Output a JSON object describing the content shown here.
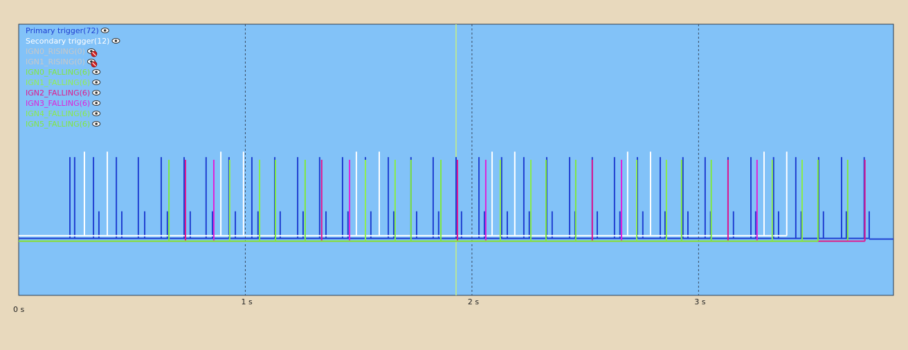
{
  "chart_data": {
    "type": "pulse",
    "xlim": [
      0,
      3.86
    ],
    "ylim": [
      0,
      1
    ],
    "xticks": [
      {
        "value": 0,
        "label": "0 s"
      },
      {
        "value": 1,
        "label": "1 s"
      },
      {
        "value": 2,
        "label": "2 s"
      },
      {
        "value": 3,
        "label": "3 s"
      }
    ],
    "grid": true,
    "cursor": 1.93,
    "cursor_color": "#c8f080",
    "series": [
      {
        "name": "Primary trigger(72)",
        "color": "#1f3fd0",
        "visible": true,
        "base": 0.21,
        "x": [
          0.226,
          0.247,
          0.33,
          0.354,
          0.431,
          0.455,
          0.528,
          0.556,
          0.629,
          0.656,
          0.73,
          0.757,
          0.827,
          0.855,
          0.928,
          0.956,
          1.029,
          1.056,
          1.13,
          1.154,
          1.231,
          1.255,
          1.328,
          1.356,
          1.429,
          1.453,
          1.53,
          1.554,
          1.631,
          1.655,
          1.731,
          1.756,
          1.829,
          1.853,
          1.93,
          1.954,
          2.031,
          2.055,
          2.131,
          2.156,
          2.229,
          2.253,
          2.33,
          2.354,
          2.431,
          2.455,
          2.531,
          2.553,
          2.629,
          2.653,
          2.73,
          2.754,
          2.831,
          2.852,
          2.931,
          2.953,
          3.029,
          3.053,
          3.13,
          3.154,
          3.231,
          3.252,
          3.331,
          3.353,
          3.429,
          3.453,
          3.53,
          3.551,
          3.631,
          3.652,
          3.731,
          3.753
        ],
        "values": [
          0.51,
          0.51,
          0.51,
          0.31,
          0.51,
          0.31,
          0.51,
          0.31,
          0.51,
          0.31,
          0.51,
          0.31,
          0.51,
          0.31,
          0.51,
          0.31,
          0.51,
          0.31,
          0.51,
          0.31,
          0.51,
          0.31,
          0.51,
          0.31,
          0.51,
          0.31,
          0.51,
          0.31,
          0.51,
          0.31,
          0.51,
          0.31,
          0.51,
          0.31,
          0.51,
          0.31,
          0.51,
          0.31,
          0.51,
          0.31,
          0.51,
          0.31,
          0.51,
          0.31,
          0.51,
          0.31,
          0.51,
          0.31,
          0.51,
          0.31,
          0.51,
          0.31,
          0.51,
          0.31,
          0.51,
          0.31,
          0.51,
          0.31,
          0.51,
          0.31,
          0.51,
          0.31,
          0.51,
          0.31,
          0.51,
          0.31,
          0.51,
          0.31,
          0.51,
          0.31,
          0.51,
          0.31
        ]
      },
      {
        "name": "Secondary trigger(12)",
        "color": "#ffffff",
        "visible": true,
        "base": 0.22,
        "x": [
          0.29,
          0.391,
          0.892,
          0.992,
          1.49,
          1.591,
          2.089,
          2.189,
          2.687,
          2.788,
          3.289,
          3.389
        ],
        "values": [
          0.53,
          0.53,
          0.53,
          0.53,
          0.53,
          0.53,
          0.53,
          0.53,
          0.53,
          0.53,
          0.53,
          0.53
        ]
      },
      {
        "name": "IGN0_RISING(0)",
        "color": "#c8c8c8",
        "visible": false,
        "base": 0.2,
        "x": [],
        "values": []
      },
      {
        "name": "IGN1_RISING(0)",
        "color": "#c8c8c8",
        "visible": false,
        "base": 0.2,
        "x": [],
        "values": []
      },
      {
        "name": "IGN0_FALLING(6)",
        "color": "#80e840",
        "visible": true,
        "base": 0.2,
        "x": [
          0.663,
          1.264,
          1.863,
          2.458,
          3.056,
          3.658
        ],
        "values": [
          0.5,
          0.5,
          0.5,
          0.5,
          0.5,
          0.5
        ]
      },
      {
        "name": "IGN1_FALLING(6)",
        "color": "#90f050",
        "visible": true,
        "base": 0.2,
        "x": [
          0.931,
          1.53,
          2.125,
          2.727,
          3.325
        ],
        "values": [
          0.5,
          0.5,
          0.5,
          0.5,
          0.5
        ]
      },
      {
        "name": "IGN2_FALLING(6)",
        "color": "#e01890",
        "visible": true,
        "base": 0.2,
        "x": [
          0.736,
          1.337,
          1.936,
          2.531,
          3.13,
          3.734
        ],
        "values": [
          0.5,
          0.5,
          0.5,
          0.5,
          0.5,
          0.5
        ]
      },
      {
        "name": "IGN3_FALLING(6)",
        "color": "#e020d8",
        "visible": true,
        "base": 0.2,
        "x": [
          0.861,
          1.46,
          2.061,
          2.66,
          3.258
        ],
        "values": [
          0.5,
          0.5,
          0.5,
          0.5,
          0.5
        ]
      },
      {
        "name": "IGN4_FALLING(6)",
        "color": "#88ec48",
        "visible": true,
        "base": 0.2,
        "x": [
          1.063,
          1.661,
          2.26,
          2.858,
          3.457
        ],
        "values": [
          0.5,
          0.5,
          0.5,
          0.5,
          0.5
        ]
      },
      {
        "name": "IGN5_FALLING(6)",
        "color": "#80e840",
        "visible": true,
        "base": 0.2,
        "x": [
          1.133,
          1.731,
          2.327,
          2.925,
          3.527
        ],
        "values": [
          0.5,
          0.5,
          0.5,
          0.5,
          0.5
        ]
      }
    ]
  }
}
